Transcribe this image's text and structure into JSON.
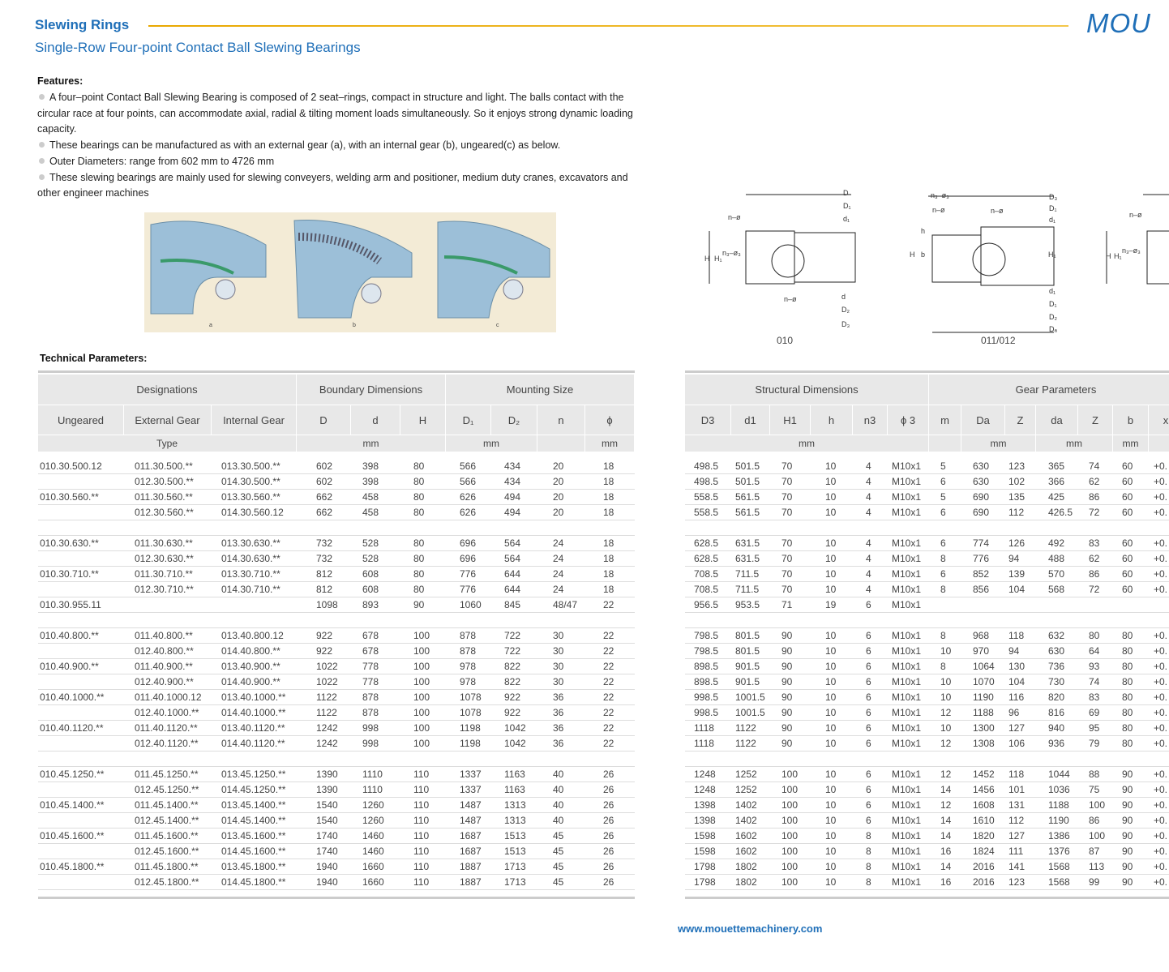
{
  "header": {
    "title": "Slewing Rings",
    "subtitle": "Single-Row Four-point Contact Ball Slewing Bearings",
    "logo": "MOU"
  },
  "features": {
    "heading": "Features:",
    "items": [
      "A four–point Contact Ball Slewing Bearing is composed of 2 seat–rings, compact in structure and light. The balls contact with the circular race at four points, can accommodate axial, radial & tilting moment loads simultaneously. So it enjoys strong dynamic loading capacity.",
      "These bearings can be manufactured as with an external gear (a), with an internal gear (b), ungeared(c) as below.",
      "Outer Diameters: range from 602 mm to 4726 mm",
      "These slewing bearings are mainly used for slewing conveyers, welding arm and positioner, medium duty cranes, excavators and other engineer machines"
    ]
  },
  "photos": {
    "captions": [
      "a",
      "b",
      "c"
    ]
  },
  "diagrams": [
    {
      "caption": "010",
      "labels": [
        "D",
        "D₁",
        "d₁",
        "n–ø",
        "H",
        "H₁",
        "n₃–ø₃",
        "n–ø",
        "d",
        "D₂",
        "D₃"
      ]
    },
    {
      "caption": "011/012",
      "labels": [
        "n₃–ø₃",
        "n–ø",
        "n–ø",
        "D₃",
        "D₁",
        "d₁",
        "h",
        "H",
        "b",
        "H₁",
        "d₁",
        "D₁",
        "D₂",
        "Dₐ"
      ]
    },
    {
      "labels": [
        "n–ø",
        "H",
        "H₁",
        "n₃–ø₃"
      ]
    }
  ],
  "technical_heading": "Technical Parameters:",
  "left_table": {
    "groups": [
      "Designations",
      "Boundary Dimensions",
      "Mounting Size"
    ],
    "columns": [
      "Ungeared",
      "External Gear",
      "Internal Gear",
      "D",
      "d",
      "H",
      "D₁",
      "D₂",
      "n",
      "ϕ"
    ],
    "units": [
      "Type",
      "mm",
      "mm",
      "mm"
    ],
    "row_groups": [
      [
        [
          "010.30.500.12",
          "011.30.500.**",
          "013.30.500.**",
          "602",
          "398",
          "80",
          "566",
          "434",
          "20",
          "18"
        ],
        [
          null,
          "012.30.500.**",
          "014.30.500.**",
          "602",
          "398",
          "80",
          "566",
          "434",
          "20",
          "18"
        ],
        [
          "010.30.560.**",
          "011.30.560.**",
          "013.30.560.**",
          "662",
          "458",
          "80",
          "626",
          "494",
          "20",
          "18"
        ],
        [
          null,
          "012.30.560.**",
          "014.30.560.12",
          "662",
          "458",
          "80",
          "626",
          "494",
          "20",
          "18"
        ]
      ],
      [
        [
          "010.30.630.**",
          "011.30.630.**",
          "013.30.630.**",
          "732",
          "528",
          "80",
          "696",
          "564",
          "24",
          "18"
        ],
        [
          null,
          "012.30.630.**",
          "014.30.630.**",
          "732",
          "528",
          "80",
          "696",
          "564",
          "24",
          "18"
        ],
        [
          "010.30.710.**",
          "011.30.710.**",
          "013.30.710.**",
          "812",
          "608",
          "80",
          "776",
          "644",
          "24",
          "18"
        ],
        [
          null,
          "012.30.710.**",
          "014.30.710.**",
          "812",
          "608",
          "80",
          "776",
          "644",
          "24",
          "18"
        ],
        [
          "010.30.955.11",
          null,
          null,
          "1098",
          "893",
          "90",
          "1060",
          "845",
          "48/47",
          "22"
        ]
      ],
      [
        [
          "010.40.800.**",
          "011.40.800.**",
          "013.40.800.12",
          "922",
          "678",
          "100",
          "878",
          "722",
          "30",
          "22"
        ],
        [
          null,
          "012.40.800.**",
          "014.40.800.**",
          "922",
          "678",
          "100",
          "878",
          "722",
          "30",
          "22"
        ],
        [
          "010.40.900.**",
          "011.40.900.**",
          "013.40.900.**",
          "1022",
          "778",
          "100",
          "978",
          "822",
          "30",
          "22"
        ],
        [
          null,
          "012.40.900.**",
          "014.40.900.**",
          "1022",
          "778",
          "100",
          "978",
          "822",
          "30",
          "22"
        ],
        [
          "010.40.1000.**",
          "011.40.1000.12",
          "013.40.1000.**",
          "1122",
          "878",
          "100",
          "1078",
          "922",
          "36",
          "22"
        ],
        [
          null,
          "012.40.1000.**",
          "014.40.1000.**",
          "1122",
          "878",
          "100",
          "1078",
          "922",
          "36",
          "22"
        ],
        [
          "010.40.1120.**",
          "011.40.1120.**",
          "013.40.1120.**",
          "1242",
          "998",
          "100",
          "1198",
          "1042",
          "36",
          "22"
        ],
        [
          null,
          "012.40.1120.**",
          "014.40.1120.**",
          "1242",
          "998",
          "100",
          "1198",
          "1042",
          "36",
          "22"
        ]
      ],
      [
        [
          "010.45.1250.**",
          "011.45.1250.**",
          "013.45.1250.**",
          "1390",
          "1110",
          "110",
          "1337",
          "1163",
          "40",
          "26"
        ],
        [
          null,
          "012.45.1250.**",
          "014.45.1250.**",
          "1390",
          "1110",
          "110",
          "1337",
          "1163",
          "40",
          "26"
        ],
        [
          "010.45.1400.**",
          "011.45.1400.**",
          "013.45.1400.**",
          "1540",
          "1260",
          "110",
          "1487",
          "1313",
          "40",
          "26"
        ],
        [
          null,
          "012.45.1400.**",
          "014.45.1400.**",
          "1540",
          "1260",
          "110",
          "1487",
          "1313",
          "40",
          "26"
        ],
        [
          "010.45.1600.**",
          "011.45.1600.**",
          "013.45.1600.**",
          "1740",
          "1460",
          "110",
          "1687",
          "1513",
          "45",
          "26"
        ],
        [
          null,
          "012.45.1600.**",
          "014.45.1600.**",
          "1740",
          "1460",
          "110",
          "1687",
          "1513",
          "45",
          "26"
        ],
        [
          "010.45.1800.**",
          "011.45.1800.**",
          "013.45.1800.**",
          "1940",
          "1660",
          "110",
          "1887",
          "1713",
          "45",
          "26"
        ],
        [
          null,
          "012.45.1800.**",
          "014.45.1800.**",
          "1940",
          "1660",
          "110",
          "1887",
          "1713",
          "45",
          "26"
        ]
      ]
    ]
  },
  "right_table": {
    "groups": [
      "Structural Dimensions",
      "Gear Parameters"
    ],
    "columns": [
      "D3",
      "d1",
      "H1",
      "h",
      "n3",
      "ϕ 3",
      "m",
      "Da",
      "Z",
      "da",
      "Z",
      "b",
      "x"
    ],
    "units": [
      "mm",
      "mm",
      "mm",
      "mm"
    ],
    "row_groups": [
      [
        [
          "498.5",
          "501.5",
          "70",
          "10",
          "4",
          "M10x1",
          "5",
          "630",
          "123",
          "365",
          "74",
          "60",
          "+0."
        ],
        [
          "498.5",
          "501.5",
          "70",
          "10",
          "4",
          "M10x1",
          "6",
          "630",
          "102",
          "366",
          "62",
          "60",
          "+0."
        ],
        [
          "558.5",
          "561.5",
          "70",
          "10",
          "4",
          "M10x1",
          "5",
          "690",
          "135",
          "425",
          "86",
          "60",
          "+0."
        ],
        [
          "558.5",
          "561.5",
          "70",
          "10",
          "4",
          "M10x1",
          "6",
          "690",
          "112",
          "426.5",
          "72",
          "60",
          "+0."
        ]
      ],
      [
        [
          "628.5",
          "631.5",
          "70",
          "10",
          "4",
          "M10x1",
          "6",
          "774",
          "126",
          "492",
          "83",
          "60",
          "+0."
        ],
        [
          "628.5",
          "631.5",
          "70",
          "10",
          "4",
          "M10x1",
          "8",
          "776",
          "94",
          "488",
          "62",
          "60",
          "+0."
        ],
        [
          "708.5",
          "711.5",
          "70",
          "10",
          "4",
          "M10x1",
          "6",
          "852",
          "139",
          "570",
          "86",
          "60",
          "+0."
        ],
        [
          "708.5",
          "711.5",
          "70",
          "10",
          "4",
          "M10x1",
          "8",
          "856",
          "104",
          "568",
          "72",
          "60",
          "+0."
        ],
        [
          "956.5",
          "953.5",
          "71",
          "19",
          "6",
          "M10x1"
        ]
      ],
      [
        [
          "798.5",
          "801.5",
          "90",
          "10",
          "6",
          "M10x1",
          "8",
          "968",
          "118",
          "632",
          "80",
          "80",
          "+0."
        ],
        [
          "798.5",
          "801.5",
          "90",
          "10",
          "6",
          "M10x1",
          "10",
          "970",
          "94",
          "630",
          "64",
          "80",
          "+0."
        ],
        [
          "898.5",
          "901.5",
          "90",
          "10",
          "6",
          "M10x1",
          "8",
          "1064",
          "130",
          "736",
          "93",
          "80",
          "+0."
        ],
        [
          "898.5",
          "901.5",
          "90",
          "10",
          "6",
          "M10x1",
          "10",
          "1070",
          "104",
          "730",
          "74",
          "80",
          "+0."
        ],
        [
          "998.5",
          "1001.5",
          "90",
          "10",
          "6",
          "M10x1",
          "10",
          "1190",
          "116",
          "820",
          "83",
          "80",
          "+0."
        ],
        [
          "998.5",
          "1001.5",
          "90",
          "10",
          "6",
          "M10x1",
          "12",
          "1188",
          "96",
          "816",
          "69",
          "80",
          "+0."
        ],
        [
          "1118",
          "1122",
          "90",
          "10",
          "6",
          "M10x1",
          "10",
          "1300",
          "127",
          "940",
          "95",
          "80",
          "+0."
        ],
        [
          "1118",
          "1122",
          "90",
          "10",
          "6",
          "M10x1",
          "12",
          "1308",
          "106",
          "936",
          "79",
          "80",
          "+0."
        ]
      ],
      [
        [
          "1248",
          "1252",
          "100",
          "10",
          "6",
          "M10x1",
          "12",
          "1452",
          "118",
          "1044",
          "88",
          "90",
          "+0."
        ],
        [
          "1248",
          "1252",
          "100",
          "10",
          "6",
          "M10x1",
          "14",
          "1456",
          "101",
          "1036",
          "75",
          "90",
          "+0."
        ],
        [
          "1398",
          "1402",
          "100",
          "10",
          "6",
          "M10x1",
          "12",
          "1608",
          "131",
          "1188",
          "100",
          "90",
          "+0."
        ],
        [
          "1398",
          "1402",
          "100",
          "10",
          "6",
          "M10x1",
          "14",
          "1610",
          "112",
          "1190",
          "86",
          "90",
          "+0."
        ],
        [
          "1598",
          "1602",
          "100",
          "10",
          "8",
          "M10x1",
          "14",
          "1820",
          "127",
          "1386",
          "100",
          "90",
          "+0."
        ],
        [
          "1598",
          "1602",
          "100",
          "10",
          "8",
          "M10x1",
          "16",
          "1824",
          "111",
          "1376",
          "87",
          "90",
          "+0."
        ],
        [
          "1798",
          "1802",
          "100",
          "10",
          "8",
          "M10x1",
          "14",
          "2016",
          "141",
          "1568",
          "113",
          "90",
          "+0."
        ],
        [
          "1798",
          "1802",
          "100",
          "10",
          "8",
          "M10x1",
          "16",
          "2016",
          "123",
          "1568",
          "99",
          "90",
          "+0."
        ]
      ]
    ]
  },
  "footer": {
    "url": "www.mouettemachinery.com"
  }
}
